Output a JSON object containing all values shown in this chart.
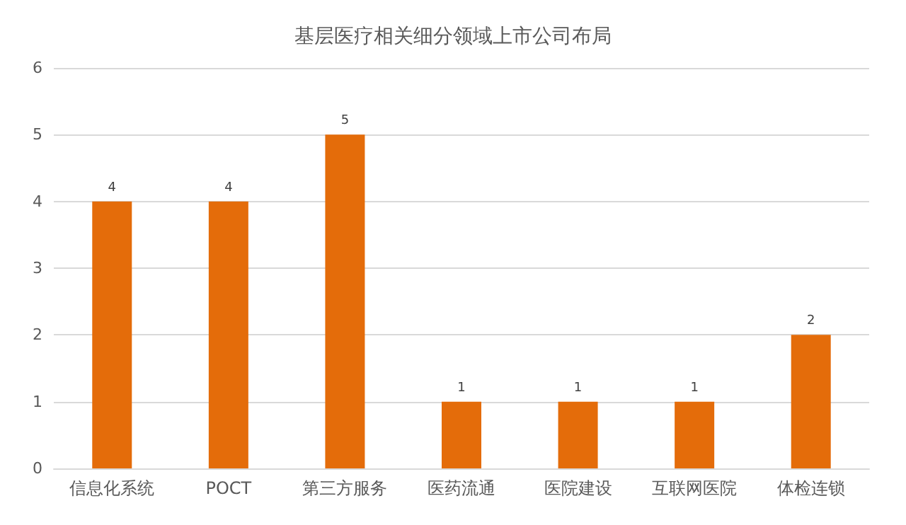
{
  "chart_data": {
    "type": "bar",
    "title": "基层医疗相关细分领域上市公司布局",
    "categories": [
      "信息化系统",
      "POCT",
      "第三方服务",
      "医药流通",
      "医院建设",
      "互联网医院",
      "体检连锁"
    ],
    "values": [
      4,
      4,
      5,
      1,
      1,
      1,
      2
    ],
    "color": "#e46c0a",
    "ylim": [
      0,
      6
    ],
    "yticks": [
      0,
      1,
      2,
      3,
      4,
      5,
      6
    ],
    "grid": "y",
    "data_labels": true
  }
}
